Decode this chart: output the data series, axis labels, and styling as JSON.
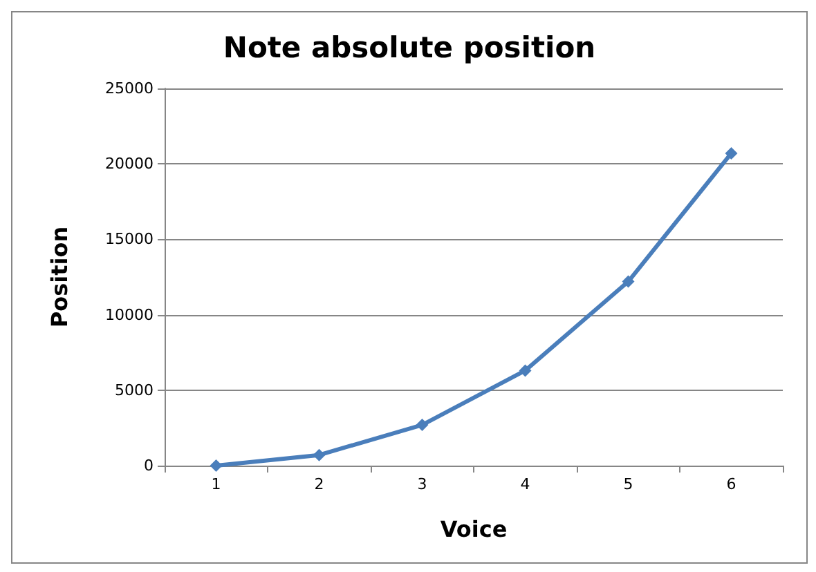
{
  "chart_data": {
    "type": "line",
    "title": "Note absolute position",
    "xlabel": "Voice",
    "ylabel": "Position",
    "categories": [
      "1",
      "2",
      "3",
      "4",
      "5",
      "6"
    ],
    "series": [
      {
        "color": "#4a7ebb",
        "values": [
          0,
          700,
          2700,
          6300,
          12200,
          20700
        ]
      }
    ],
    "ylim": [
      0,
      25000
    ],
    "yticks": [
      0,
      5000,
      10000,
      15000,
      20000,
      25000
    ],
    "grid": "y",
    "marker": "diamond",
    "line_style": "solid"
  }
}
